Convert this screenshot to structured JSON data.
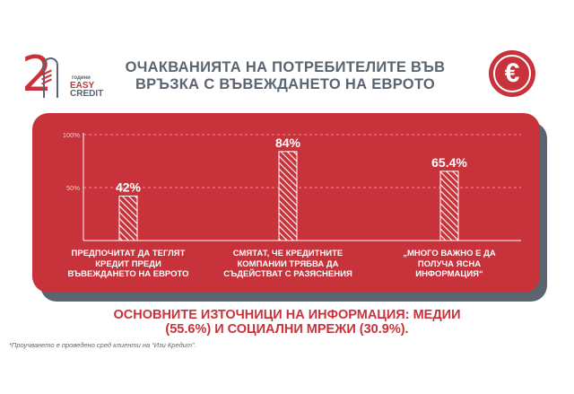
{
  "logo": {
    "number": "20",
    "years": "години",
    "brand_top": "EASY",
    "brand_bottom": "CREDIT"
  },
  "title_line1": "ОЧАКВАНИЯТА НА ПОТРЕБИТЕЛИТЕ ВЪВ",
  "title_line2": "ВРЪЗКА С ВЪВЕЖДАНЕТО НА ЕВРОТО",
  "euro_icon": "€",
  "colors": {
    "brand_red": "#c8323a",
    "gray": "#5a6570"
  },
  "chart_data": {
    "type": "bar",
    "categories": [
      "ПРЕДПОЧИТАТ ДА ТЕГЛЯТ КРЕДИТ ПРЕДИ ВЪВЕЖДАНЕТО НА ЕВРОТО",
      "СМЯТАТ, ЧЕ КРЕДИТНИТЕ КОМПАНИИ ТРЯБВА ДА СЪДЕЙСТВАТ С РАЗЯСНЕНИЯ",
      "„МНОГО ВАЖНО Е ДА ПОЛУЧА ЯСНА ИНФОРМАЦИЯ“"
    ],
    "category_lines": [
      [
        "ПРЕДПОЧИТАТ ДА ТЕГЛЯТ",
        "КРЕДИТ ПРЕДИ",
        "ВЪВЕЖДАНЕТО НА ЕВРОТО"
      ],
      [
        "СМЯТАТ, ЧЕ КРЕДИТНИТЕ",
        "КОМПАНИИ ТРЯБВА ДА",
        "СЪДЕЙСТВАТ С РАЗЯСНЕНИЯ"
      ],
      [
        "„МНОГО ВАЖНО Е ДА",
        "ПОЛУЧА ЯСНА",
        "ИНФОРМАЦИЯ“"
      ]
    ],
    "values": [
      42,
      84,
      65.4
    ],
    "data_labels": [
      "42%",
      "84%",
      "65.4%"
    ],
    "yticks": [
      50,
      100
    ],
    "ytick_labels": [
      "50%",
      "100%"
    ],
    "ylim": [
      0,
      100
    ],
    "grid": true,
    "bar_fill": "hatched"
  },
  "bottom_text_line1": "ОСНОВНИТЕ ИЗТОЧНИЦИ НА ИНФОРМАЦИЯ: МЕДИИ",
  "bottom_text_line2": "(55.6%) И СОЦИАЛНИ МРЕЖИ (30.9%).",
  "footnote": "*Проучването е проведено сред клиенти на “Изи Кредит”."
}
